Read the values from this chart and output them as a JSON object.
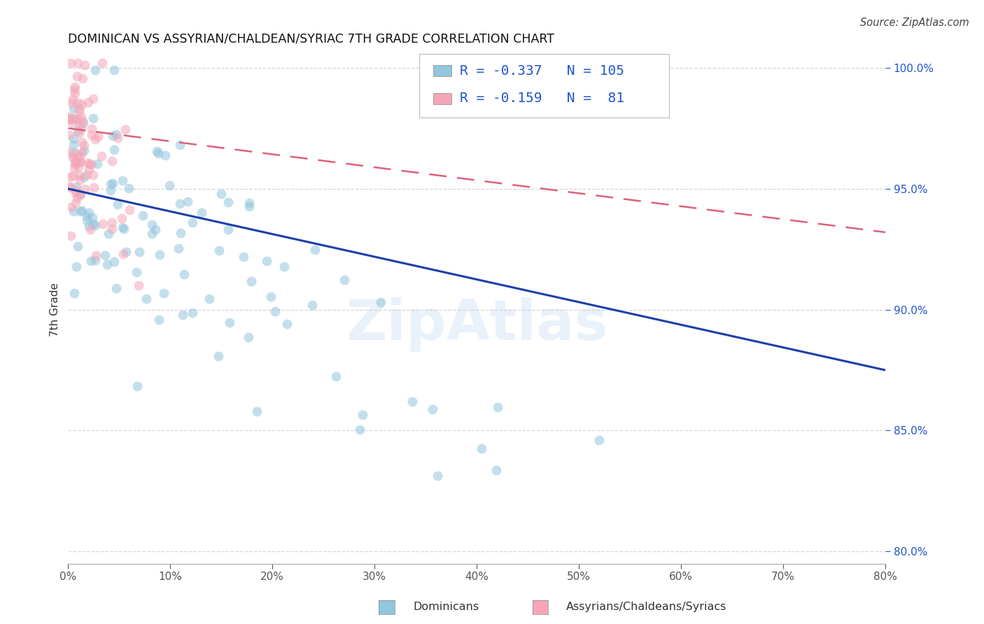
{
  "title": "DOMINICAN VS ASSYRIAN/CHALDEAN/SYRIAC 7TH GRADE CORRELATION CHART",
  "source": "Source: ZipAtlas.com",
  "ylabel": "7th Grade",
  "legend1_label": "Dominicans",
  "legend2_label": "Assyrians/Chaldeans/Syriacs",
  "R_blue": -0.337,
  "N_blue": 105,
  "R_pink": -0.159,
  "N_pink": 81,
  "blue_color": "#92c5de",
  "pink_color": "#f4a6b8",
  "line_blue": "#1a3faa",
  "line_pink": "#e0607a",
  "xlim": [
    0.0,
    0.8
  ],
  "ylim": [
    0.795,
    1.005
  ],
  "xticks": [
    0.0,
    0.1,
    0.2,
    0.3,
    0.4,
    0.5,
    0.6,
    0.7,
    0.8
  ],
  "yticks": [
    0.8,
    0.85,
    0.9,
    0.95,
    1.0
  ],
  "blue_line_x": [
    0.0,
    0.8
  ],
  "blue_line_y": [
    0.95,
    0.875
  ],
  "pink_line_x": [
    0.0,
    0.8
  ],
  "pink_line_y": [
    0.975,
    0.932
  ],
  "watermark": "ZipAtlas",
  "title_fontsize": 12.5,
  "axis_label_fontsize": 11,
  "tick_fontsize": 11,
  "source_fontsize": 10.5,
  "axis_color": "#2255cc",
  "grid_color": "#cccccc",
  "marker_size": 100
}
